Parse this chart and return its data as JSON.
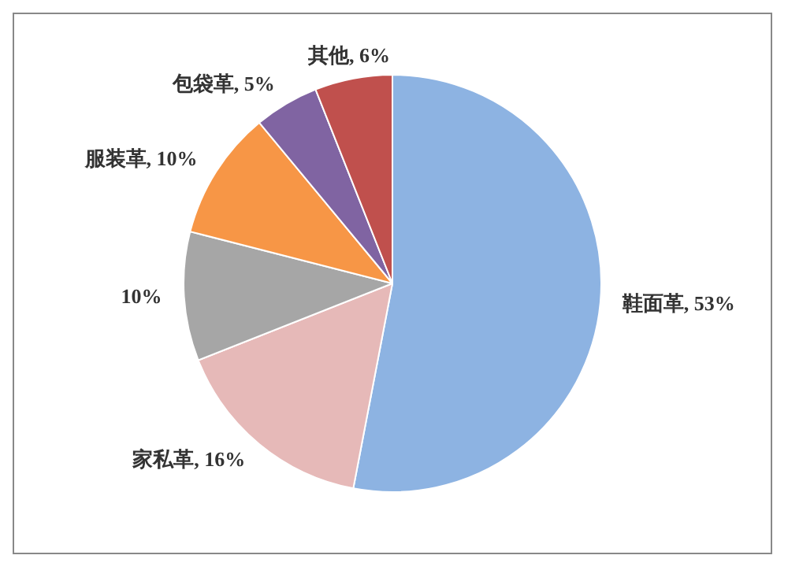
{
  "chart_data": {
    "type": "pie",
    "categories": [
      "鞋面革",
      "家私革",
      null,
      "服装革",
      "包袋革",
      "其他"
    ],
    "values": [
      53,
      16,
      10,
      10,
      5,
      6
    ],
    "value_labels": [
      "53%",
      "16%",
      "10%",
      "10%",
      "5%",
      "6%"
    ],
    "colors": [
      "#8db3e2",
      "#e6b9b8",
      "#a6a6a6",
      "#f79646",
      "#8064a2",
      "#c0504d"
    ],
    "legend": false
  }
}
